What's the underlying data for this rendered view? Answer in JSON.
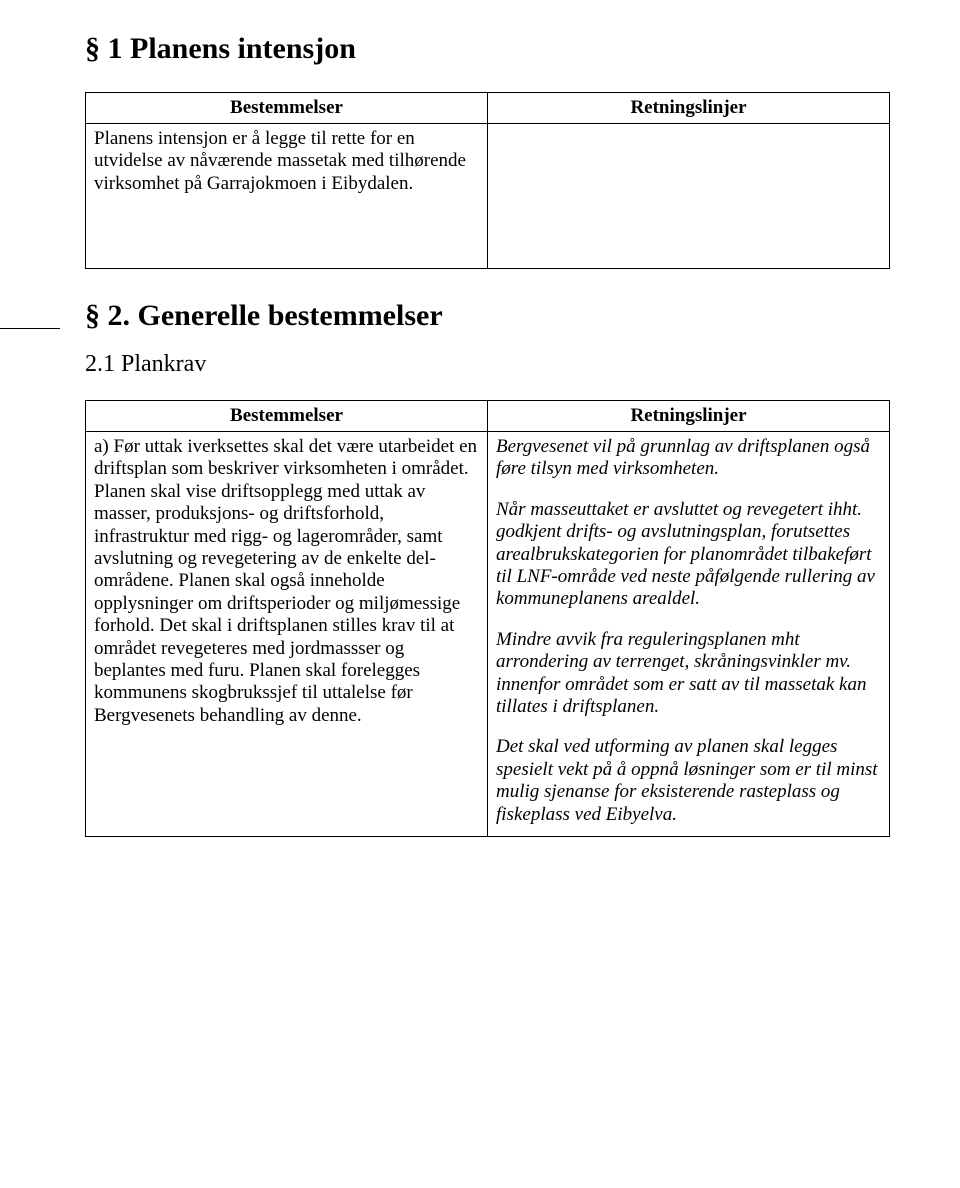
{
  "section1": {
    "title": "§ 1 Planens intensjon",
    "table": {
      "header_left": "Bestemmelser",
      "header_right": "Retningslinjer",
      "body_left": "Planens intensjon er å legge til rette for en utvidelse av nåværende massetak med tilhørende virksomhet på Garrajokmoen i Eibydalen.",
      "body_right": ""
    }
  },
  "section2": {
    "title": "§ 2. Generelle bestemmelser",
    "sub1": {
      "title": "2.1 Plankrav",
      "table": {
        "header_left": "Bestemmelser",
        "header_right": "Retningslinjer",
        "body_left": "a)  Før uttak iverksettes skal det være utarbeidet en driftsplan som beskriver virksomheten i området. Planen skal vise driftsopplegg med uttak av masser, produksjons- og driftsforhold, infrastruktur med rigg- og lagerområder, samt avslutning og revegetering av de enkelte del-områdene. Planen skal også inneholde opplysninger om driftsperioder og miljømessige forhold. Det skal i driftsplanen stilles krav til at området revegeteres med jordmassser og beplantes med furu. Planen skal forelegges kommunens skogbrukssjef til uttalelse før Bergvesenets behandling av denne.",
        "right_p1": "Bergvesenet vil på grunnlag av driftsplanen også føre tilsyn med virksomheten.",
        "right_p2": "Når masseuttaket er avsluttet og revegetert ihht. godkjent drifts- og avslutningsplan, forutsettes arealbrukskategorien for planområdet tilbakeført til LNF-område ved neste påfølgende rullering av kommuneplanens arealdel.",
        "right_p3": "Mindre avvik fra reguleringsplanen mht arrondering av terrenget, skråningsvinkler mv. innenfor området som er satt av til massetak kan tillates i driftsplanen.",
        "right_p4": "Det skal ved utforming av planen skal legges spesielt vekt på å oppnå løsninger som er til minst mulig sjenanse for eksisterende rasteplass og fiskeplass ved Eibyelva."
      }
    }
  }
}
